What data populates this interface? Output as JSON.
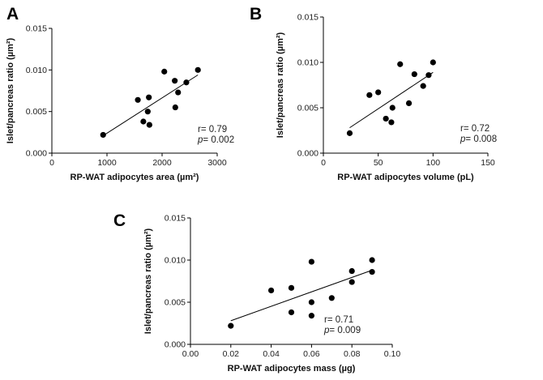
{
  "chart_data": [
    {
      "type": "scatter",
      "panel": "A",
      "xlabel": "RP-WAT adipocytes area (µm²)",
      "ylabel": "Islet/pancreas ratio (µm²)",
      "xlim": [
        0,
        3000
      ],
      "ylim": [
        0,
        0.015
      ],
      "xticks": [
        "0",
        "1000",
        "2000",
        "3000"
      ],
      "yticks": [
        "0.000",
        "0.005",
        "0.010",
        "0.015"
      ],
      "points": [
        {
          "x": 930,
          "y": 0.0022
        },
        {
          "x": 1560,
          "y": 0.0064
        },
        {
          "x": 1660,
          "y": 0.0038
        },
        {
          "x": 1740,
          "y": 0.005
        },
        {
          "x": 1760,
          "y": 0.0067
        },
        {
          "x": 1770,
          "y": 0.0034
        },
        {
          "x": 2040,
          "y": 0.0098
        },
        {
          "x": 2230,
          "y": 0.0087
        },
        {
          "x": 2240,
          "y": 0.0055
        },
        {
          "x": 2290,
          "y": 0.0073
        },
        {
          "x": 2440,
          "y": 0.0085
        },
        {
          "x": 2650,
          "y": 0.01
        }
      ],
      "trendline": {
        "x": [
          930,
          2650
        ],
        "y": [
          0.0021,
          0.0094
        ]
      },
      "annotations": [
        "r= 0.79",
        "p= 0.002"
      ]
    },
    {
      "type": "scatter",
      "panel": "B",
      "xlabel": "RP-WAT adipocytes volume (pL)",
      "ylabel": "Islet/pancreas ratio (µm²)",
      "xlim": [
        0,
        150
      ],
      "ylim": [
        0,
        0.015
      ],
      "xticks": [
        "0",
        "50",
        "100",
        "150"
      ],
      "yticks": [
        "0.000",
        "0.005",
        "0.010",
        "0.015"
      ],
      "points": [
        {
          "x": 24,
          "y": 0.0022
        },
        {
          "x": 42,
          "y": 0.0064
        },
        {
          "x": 50,
          "y": 0.0067
        },
        {
          "x": 57,
          "y": 0.0038
        },
        {
          "x": 62,
          "y": 0.0034
        },
        {
          "x": 63,
          "y": 0.005
        },
        {
          "x": 70,
          "y": 0.0098
        },
        {
          "x": 78,
          "y": 0.0055
        },
        {
          "x": 83,
          "y": 0.0087
        },
        {
          "x": 91,
          "y": 0.0074
        },
        {
          "x": 96,
          "y": 0.0086
        },
        {
          "x": 100,
          "y": 0.01
        }
      ],
      "trendline": {
        "x": [
          24,
          100
        ],
        "y": [
          0.0028,
          0.0089
        ]
      },
      "annotations": [
        "r= 0.72",
        "p= 0.008"
      ]
    },
    {
      "type": "scatter",
      "panel": "C",
      "xlabel": "RP-WAT adipocytes mass (µg)",
      "ylabel": "Islet/pancreas ratio (µm²)",
      "xlim": [
        0,
        0.1
      ],
      "ylim": [
        0,
        0.015
      ],
      "xticks": [
        "0.00",
        "0.02",
        "0.04",
        "0.06",
        "0.08",
        "0.10"
      ],
      "yticks": [
        "0.000",
        "0.005",
        "0.010",
        "0.015"
      ],
      "points": [
        {
          "x": 0.02,
          "y": 0.0022
        },
        {
          "x": 0.04,
          "y": 0.0064
        },
        {
          "x": 0.05,
          "y": 0.0067
        },
        {
          "x": 0.05,
          "y": 0.0038
        },
        {
          "x": 0.06,
          "y": 0.0098
        },
        {
          "x": 0.06,
          "y": 0.005
        },
        {
          "x": 0.06,
          "y": 0.0034
        },
        {
          "x": 0.07,
          "y": 0.0055
        },
        {
          "x": 0.08,
          "y": 0.0087
        },
        {
          "x": 0.08,
          "y": 0.0074
        },
        {
          "x": 0.09,
          "y": 0.01
        },
        {
          "x": 0.09,
          "y": 0.0086
        }
      ],
      "trendline": {
        "x": [
          0.02,
          0.09
        ],
        "y": [
          0.0028,
          0.0088
        ]
      },
      "annotations": [
        "r= 0.71",
        "p= 0.009"
      ]
    }
  ]
}
